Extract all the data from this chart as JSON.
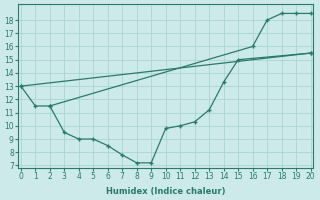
{
  "xlabel": "Humidex (Indice chaleur)",
  "bg_color": "#cdeaea",
  "grid_color": "#aad4d4",
  "line_color": "#2a7a6a",
  "series": [
    {
      "x": [
        0,
        1,
        2,
        16,
        17,
        18,
        19,
        20
      ],
      "y": [
        13,
        11.5,
        11.5,
        16.0,
        18.0,
        18.5,
        18.5,
        18.5
      ]
    },
    {
      "x": [
        0,
        20
      ],
      "y": [
        13,
        15.5
      ]
    },
    {
      "x": [
        2,
        3,
        4,
        5,
        6,
        7,
        8,
        9,
        10,
        11,
        12,
        13,
        14,
        15,
        20
      ],
      "y": [
        11.5,
        9.5,
        9.0,
        9.0,
        8.5,
        7.8,
        7.2,
        7.2,
        9.8,
        10.0,
        10.3,
        11.2,
        13.3,
        15.0,
        15.5
      ]
    }
  ],
  "xlim": [
    -0.2,
    20.2
  ],
  "ylim": [
    6.8,
    19.2
  ],
  "yticks": [
    7,
    8,
    9,
    10,
    11,
    12,
    13,
    14,
    15,
    16,
    17,
    18
  ],
  "xticks": [
    0,
    1,
    2,
    3,
    4,
    5,
    6,
    7,
    8,
    9,
    10,
    11,
    12,
    13,
    14,
    15,
    16,
    17,
    18,
    19,
    20
  ]
}
